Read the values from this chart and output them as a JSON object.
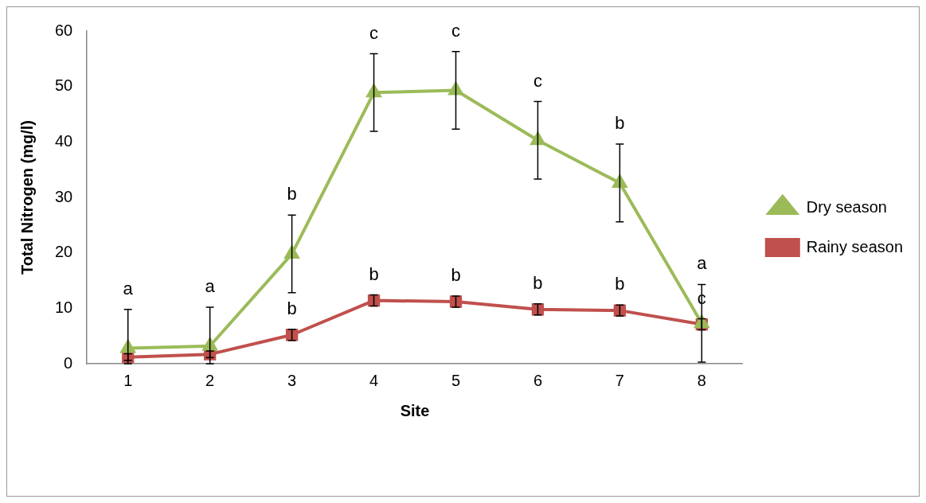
{
  "chart_data": {
    "type": "line",
    "xlabel": "Site",
    "ylabel": "Total Nitrogen (mg/l)",
    "categories": [
      "1",
      "2",
      "3",
      "4",
      "5",
      "6",
      "7",
      "8"
    ],
    "series": [
      {
        "name": "Dry season",
        "color": "#9bbb59",
        "marker": "triangle",
        "values": [
          2.8,
          3.2,
          19.8,
          48.9,
          49.3,
          40.3,
          32.6,
          7.3
        ],
        "errors": [
          [
            0,
            9.8
          ],
          [
            0,
            10.2
          ],
          7,
          7,
          7,
          7,
          7,
          7
        ],
        "value_labels": [
          "a",
          "a",
          "b",
          "c",
          "c",
          "c",
          "b",
          "a"
        ]
      },
      {
        "name": "Rainy season",
        "color": "#c0504d",
        "marker": "square",
        "values": [
          1.2,
          1.7,
          5.2,
          11.4,
          11.2,
          9.8,
          9.6,
          7.1
        ],
        "errors": [
          0.6,
          0.6,
          1,
          1,
          1,
          1,
          1,
          1
        ],
        "value_labels": [
          null,
          null,
          "b",
          "b",
          "b",
          "b",
          "b",
          "c"
        ]
      }
    ],
    "ylim": [
      0,
      60
    ],
    "yticks": [
      0,
      10,
      20,
      30,
      40,
      50,
      60
    ],
    "grid": false,
    "legend": "right"
  }
}
